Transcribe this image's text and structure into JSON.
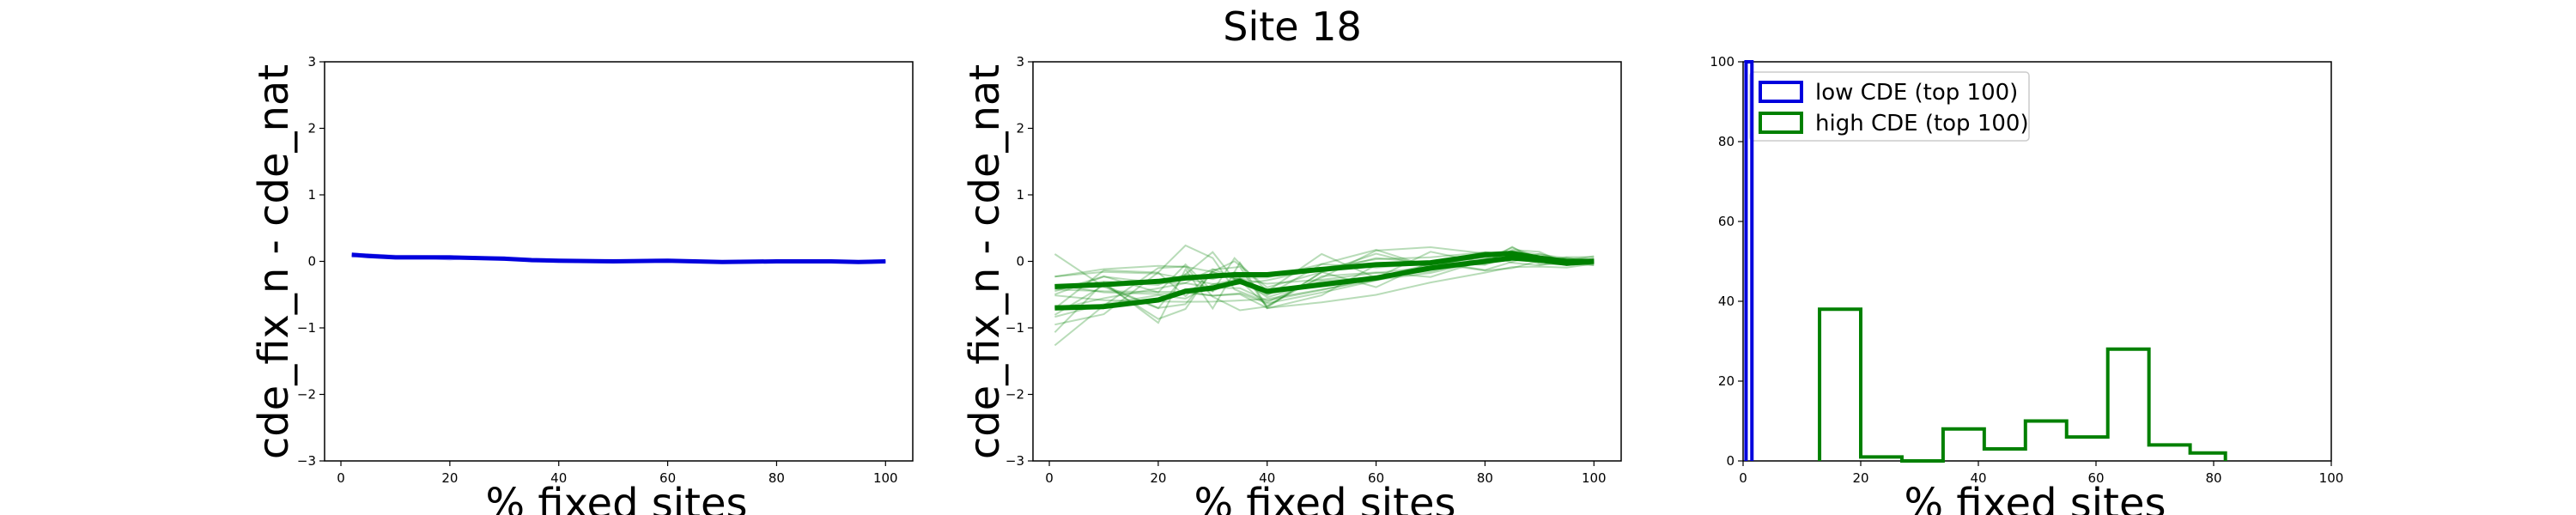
{
  "figure": {
    "title": "Site 18"
  },
  "colors": {
    "blue": "#0000dd",
    "green": "#008000"
  },
  "chart_data": [
    {
      "type": "line",
      "title": "",
      "xlabel": "% fixed sites",
      "ylabel": "cde_fix_n - cde_nat",
      "xlim": [
        -3,
        105
      ],
      "ylim": [
        -3,
        3
      ],
      "xticks": [
        "0",
        "20",
        "40",
        "60",
        "80",
        "100"
      ],
      "yticks": [
        "−3",
        "−2",
        "−1",
        "0",
        "1",
        "2",
        "3"
      ],
      "series": [
        {
          "color": "blue",
          "x": [
            2,
            5,
            10,
            20,
            25,
            30,
            35,
            40,
            50,
            60,
            70,
            80,
            90,
            95,
            100
          ],
          "y": [
            0.1,
            0.08,
            0.06,
            0.06,
            0.05,
            0.04,
            0.02,
            0.01,
            0.0,
            0.01,
            -0.01,
            0.0,
            0.0,
            -0.01,
            0.0
          ]
        }
      ]
    },
    {
      "type": "line",
      "title": "",
      "xlabel": "% fixed sites",
      "ylabel": "cde_fix_n - cde_nat",
      "xlim": [
        -3,
        105
      ],
      "ylim": [
        -3,
        3
      ],
      "xticks": [
        "0",
        "20",
        "40",
        "60",
        "80",
        "100"
      ],
      "yticks": [
        "−3",
        "−2",
        "−1",
        "0",
        "1",
        "2",
        "3"
      ],
      "series": [
        {
          "color": "green",
          "x": [
            1,
            10,
            20,
            25,
            30,
            34,
            40,
            50,
            60,
            70,
            80,
            85,
            90,
            95,
            100
          ],
          "y": [
            -0.38,
            -0.35,
            -0.3,
            -0.25,
            -0.22,
            -0.2,
            -0.2,
            -0.12,
            -0.05,
            -0.02,
            0.1,
            0.12,
            0.05,
            0.0,
            0.0
          ]
        },
        {
          "color": "green",
          "x": [
            1,
            10,
            20,
            25,
            30,
            35,
            40,
            50,
            60,
            70,
            80,
            85,
            90,
            95,
            100
          ],
          "y": [
            -0.7,
            -0.68,
            -0.58,
            -0.45,
            -0.4,
            -0.3,
            -0.45,
            -0.35,
            -0.25,
            -0.1,
            0.0,
            0.05,
            0.02,
            -0.03,
            0.0
          ]
        }
      ]
    },
    {
      "type": "bar",
      "title": "",
      "xlabel": "% fixed sites",
      "ylabel": "",
      "xlim": [
        0,
        100
      ],
      "ylim": [
        0,
        100
      ],
      "xticks": [
        "0",
        "20",
        "40",
        "60",
        "80",
        "100"
      ],
      "yticks": [
        "0",
        "20",
        "40",
        "60",
        "80",
        "100"
      ],
      "legend": {
        "placement": "top-left",
        "entries": [
          "low CDE (top 100)",
          "high CDE (top 100)"
        ]
      },
      "series": [
        {
          "name": "low CDE (top 100)",
          "color": "blue",
          "bin_edges": [
            0.5,
            1.5
          ],
          "values": [
            100
          ]
        },
        {
          "name": "high CDE (top 100)",
          "color": "green",
          "bin_edges": [
            13,
            20,
            27,
            34,
            41,
            48,
            55,
            62,
            69,
            76,
            82
          ],
          "values": [
            38,
            1,
            0,
            8,
            3,
            10,
            6,
            28,
            4,
            2
          ]
        }
      ]
    }
  ]
}
